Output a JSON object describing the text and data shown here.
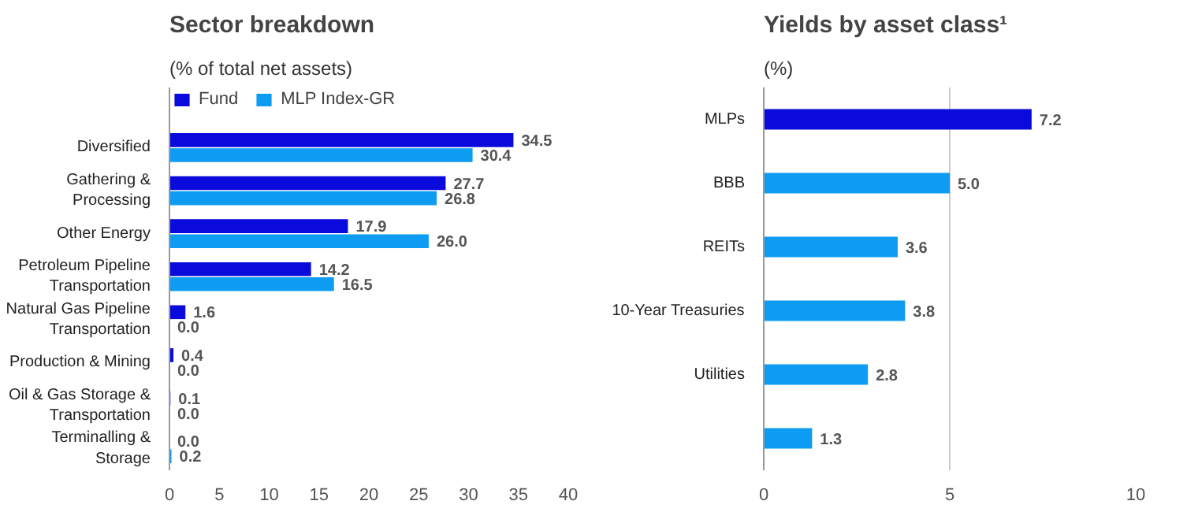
{
  "chart_data": [
    {
      "type": "bar",
      "orientation": "horizontal",
      "title": "Sector breakdown",
      "subtitle": "(% of total net assets)",
      "categories": [
        "Diversified",
        "Gathering & Processing",
        "Other Energy",
        "Petroleum Pipeline Transportation",
        "Natural Gas Pipeline Transportation",
        "Production & Mining",
        "Oil & Gas Storage & Transportation",
        "Terminalling & Storage"
      ],
      "series": [
        {
          "name": "Fund",
          "color": "#0a0adc",
          "values": [
            34.5,
            27.7,
            17.9,
            14.2,
            1.6,
            0.4,
            0.1,
            0
          ],
          "value_labels": [
            "34.5",
            "27.7",
            "17.9",
            "14.2",
            "1.6",
            "0.4",
            "0.1",
            "0.0"
          ]
        },
        {
          "name": "MLP Index-GR",
          "color": "#0d9cf2",
          "values": [
            30.4,
            26.8,
            26,
            16.5,
            0,
            0,
            0,
            0.2
          ],
          "value_labels": [
            "30.4",
            "26.8",
            "26.0",
            "16.5",
            "0.0",
            "0.0",
            "0.0",
            "0.2"
          ]
        }
      ],
      "xlim": [
        0,
        40
      ],
      "xticks": [
        0,
        5,
        10,
        15,
        20,
        25,
        30,
        35,
        40
      ],
      "grid": false,
      "legend": "top left"
    },
    {
      "type": "bar",
      "orientation": "horizontal",
      "title": "Yields by asset class¹",
      "subtitle": "(%)",
      "categories": [
        "MLPs",
        "BBB",
        "REITs",
        "10-Year Treasuries",
        "Utilities",
        null
      ],
      "values": [
        7.2,
        5,
        3.6,
        3.8,
        2.8,
        1.3
      ],
      "value_labels": [
        "7.2",
        "5.0",
        "3.6",
        "3.8",
        "2.8",
        "1.3"
      ],
      "colors": [
        "#0a0adc",
        "#0d9cf2",
        "#0d9cf2",
        "#0d9cf2",
        "#0d9cf2",
        "#0d9cf2"
      ],
      "xlim": [
        0,
        10
      ],
      "xticks": [
        0,
        5,
        10
      ],
      "grid": "x"
    }
  ]
}
